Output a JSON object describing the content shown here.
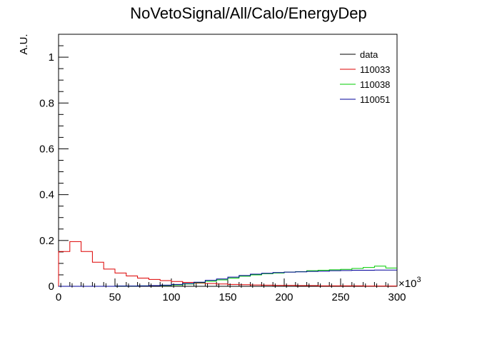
{
  "chart_data": {
    "type": "histogram",
    "title": "NoVetoSignal/All/Calo/EnergyDep",
    "ylabel": "A.U.",
    "xlabel": "",
    "x_exponent_base": "×10",
    "x_exponent_power": "3",
    "xlim": [
      0,
      300
    ],
    "ylim": [
      0,
      1.1
    ],
    "bin_width": 10,
    "x_ticks": [
      0,
      50,
      100,
      150,
      200,
      250,
      300
    ],
    "y_ticks": [
      0,
      0.2,
      0.4,
      0.6,
      0.8,
      1
    ],
    "x_tick_labels": [
      "0",
      "50",
      "100",
      "150",
      "200",
      "250",
      "300"
    ],
    "y_tick_labels": [
      "0",
      "0.2",
      "0.4",
      "0.6",
      "0.8",
      "1"
    ],
    "legend_position": "top-right",
    "series": [
      {
        "name": "data",
        "color": "#000000",
        "render": "markers",
        "x": [
          2,
          12,
          22,
          32,
          42,
          52,
          62,
          72,
          82,
          92,
          102,
          112,
          122,
          132,
          142,
          152,
          162,
          172,
          182,
          192,
          202,
          212,
          222,
          232,
          242,
          252,
          262,
          272,
          282,
          292
        ],
        "values": [
          0.005,
          0.004,
          0.004,
          0.004,
          0.004,
          0.003,
          0.003,
          0.003,
          0.003,
          0.003,
          0.003,
          0.003,
          0.003,
          0.003,
          0.003,
          0.003,
          0.003,
          0.003,
          0.003,
          0.003,
          0.003,
          0.003,
          0.003,
          0.003,
          0.003,
          0.003,
          0.003,
          0.003,
          0.003,
          0.003
        ]
      },
      {
        "name": "110033",
        "color": "#dd0000",
        "render": "step",
        "values": [
          0.152,
          0.195,
          0.152,
          0.105,
          0.075,
          0.058,
          0.045,
          0.036,
          0.03,
          0.025,
          0.021,
          0.017,
          0.014,
          0.012,
          0.01,
          0.008,
          0.007,
          0.006,
          0.005,
          0.004,
          0.004,
          0.003,
          0.003,
          0.002,
          0.002,
          0.002,
          0.002,
          0.001,
          0.001,
          0.001
        ]
      },
      {
        "name": "110038",
        "color": "#00cc00",
        "render": "step",
        "values": [
          0,
          0,
          0,
          0,
          0,
          0.001,
          0.001,
          0.002,
          0.003,
          0.004,
          0.006,
          0.01,
          0.016,
          0.022,
          0.028,
          0.036,
          0.044,
          0.05,
          0.055,
          0.058,
          0.062,
          0.064,
          0.068,
          0.07,
          0.072,
          0.074,
          0.078,
          0.082,
          0.088,
          0.08
        ]
      },
      {
        "name": "110051",
        "color": "#000099",
        "render": "step",
        "values": [
          0,
          0,
          0,
          0,
          0,
          0.001,
          0.001,
          0.002,
          0.003,
          0.005,
          0.008,
          0.012,
          0.018,
          0.026,
          0.032,
          0.04,
          0.047,
          0.053,
          0.057,
          0.06,
          0.062,
          0.063,
          0.065,
          0.066,
          0.068,
          0.069,
          0.07,
          0.07,
          0.071,
          0.071
        ]
      }
    ]
  }
}
